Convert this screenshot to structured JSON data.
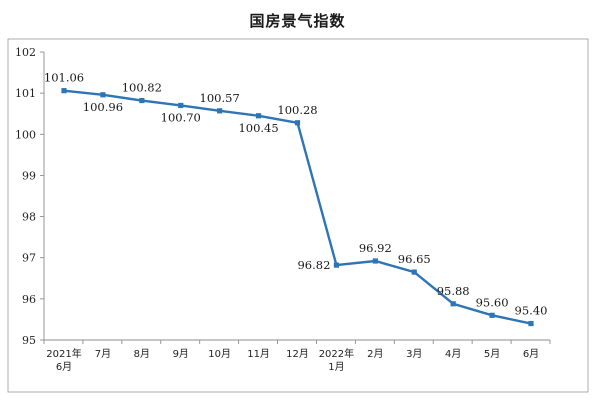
{
  "chart_data": {
    "type": "line",
    "title": "国房景气指数",
    "xlabel": "",
    "ylabel": "",
    "ylim": [
      95,
      102
    ],
    "yticks": [
      "95",
      "96",
      "97",
      "98",
      "99",
      "100",
      "101",
      "102"
    ],
    "grid": false,
    "legend": "none",
    "categories": [
      [
        "2021年",
        "6月"
      ],
      [
        "7月"
      ],
      [
        "8月"
      ],
      [
        "9月"
      ],
      [
        "10月"
      ],
      [
        "11月"
      ],
      [
        "12月"
      ],
      [
        "2022年",
        "1月"
      ],
      [
        "2月"
      ],
      [
        "3月"
      ],
      [
        "4月"
      ],
      [
        "5月"
      ],
      [
        "6月"
      ]
    ],
    "series": [
      {
        "values": [
          101.06,
          100.96,
          100.82,
          100.7,
          100.57,
          100.45,
          100.28,
          96.82,
          96.92,
          96.65,
          95.88,
          95.6,
          95.4
        ],
        "labels": [
          "101.06",
          "100.96",
          "100.82",
          "100.70",
          "100.57",
          "100.45",
          "100.28",
          "96.82",
          "96.92",
          "96.65",
          "95.88",
          "95.60",
          "95.40"
        ],
        "label_side": [
          "above",
          "below",
          "above",
          "below",
          "above",
          "below",
          "above",
          "left",
          "above",
          "above",
          "above",
          "above",
          "above"
        ],
        "color": "#2e75b6"
      }
    ],
    "colors": {
      "line": "#2e75b6",
      "axis": "#8c8c8c",
      "frame": "#9a9a9a",
      "text": "#222222"
    }
  }
}
